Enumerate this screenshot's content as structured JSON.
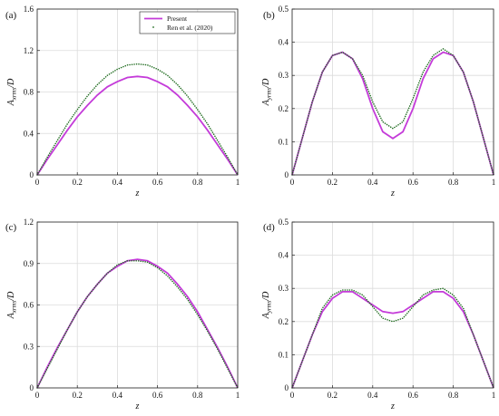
{
  "colors": {
    "present": "#c43bd9",
    "ren": "#1f6b1f",
    "grid": "#dcdcdc",
    "axis": "#222222"
  },
  "chart_data": [
    {
      "panel": "(a)",
      "type": "line",
      "xlabel": "z",
      "ylabel_main": "A",
      "ylabel_sub": "xrms",
      "ylabel_tail": "/D",
      "xlim": [
        0,
        1
      ],
      "ylim": [
        0,
        1.6
      ],
      "xticks": [
        "0",
        "0.2",
        "0.4",
        "0.6",
        "0.8",
        "1"
      ],
      "yticks": [
        "0",
        "0.4",
        "0.8",
        "1.2",
        "1.6"
      ],
      "legend": {
        "position": "top-right",
        "entries": [
          "Present",
          "Ren et al. (2020)"
        ]
      },
      "series": [
        {
          "name": "Present",
          "style": "solid",
          "x": [
            0,
            0.05,
            0.1,
            0.15,
            0.2,
            0.25,
            0.3,
            0.35,
            0.4,
            0.45,
            0.5,
            0.55,
            0.6,
            0.65,
            0.7,
            0.75,
            0.8,
            0.85,
            0.9,
            0.95,
            1
          ],
          "y": [
            0,
            0.15,
            0.29,
            0.43,
            0.56,
            0.67,
            0.77,
            0.85,
            0.9,
            0.94,
            0.95,
            0.94,
            0.9,
            0.85,
            0.77,
            0.67,
            0.56,
            0.43,
            0.29,
            0.15,
            0
          ]
        },
        {
          "name": "Ren et al. (2020)",
          "style": "dotted",
          "x": [
            0,
            0.05,
            0.1,
            0.15,
            0.2,
            0.25,
            0.3,
            0.35,
            0.4,
            0.45,
            0.5,
            0.55,
            0.6,
            0.65,
            0.7,
            0.75,
            0.8,
            0.85,
            0.9,
            0.95,
            1
          ],
          "y": [
            0,
            0.17,
            0.33,
            0.49,
            0.63,
            0.76,
            0.87,
            0.96,
            1.02,
            1.06,
            1.07,
            1.06,
            1.02,
            0.96,
            0.87,
            0.76,
            0.63,
            0.49,
            0.33,
            0.17,
            0
          ]
        }
      ]
    },
    {
      "panel": "(b)",
      "type": "line",
      "xlabel": "z",
      "ylabel_main": "A",
      "ylabel_sub": "yrms",
      "ylabel_tail": "/D",
      "xlim": [
        0,
        1
      ],
      "ylim": [
        0,
        0.5
      ],
      "xticks": [
        "0",
        "0.2",
        "0.4",
        "0.6",
        "0.8",
        "1"
      ],
      "yticks": [
        "0",
        "0.1",
        "0.2",
        "0.3",
        "0.4",
        "0.5"
      ],
      "series": [
        {
          "name": "Present",
          "style": "solid",
          "x": [
            0,
            0.05,
            0.1,
            0.15,
            0.2,
            0.25,
            0.3,
            0.35,
            0.4,
            0.45,
            0.5,
            0.55,
            0.6,
            0.65,
            0.7,
            0.75,
            0.8,
            0.85,
            0.9,
            0.95,
            1
          ],
          "y": [
            0,
            0.11,
            0.22,
            0.31,
            0.36,
            0.37,
            0.35,
            0.29,
            0.2,
            0.13,
            0.11,
            0.13,
            0.2,
            0.29,
            0.35,
            0.37,
            0.36,
            0.31,
            0.22,
            0.11,
            0
          ]
        },
        {
          "name": "Ren et al. (2020)",
          "style": "dotted",
          "x": [
            0,
            0.05,
            0.1,
            0.15,
            0.2,
            0.25,
            0.3,
            0.35,
            0.4,
            0.45,
            0.5,
            0.55,
            0.6,
            0.65,
            0.7,
            0.75,
            0.8,
            0.85,
            0.9,
            0.95,
            1
          ],
          "y": [
            0,
            0.11,
            0.22,
            0.31,
            0.36,
            0.37,
            0.35,
            0.3,
            0.22,
            0.16,
            0.14,
            0.16,
            0.23,
            0.31,
            0.36,
            0.38,
            0.36,
            0.31,
            0.22,
            0.11,
            0
          ]
        }
      ]
    },
    {
      "panel": "(c)",
      "type": "line",
      "xlabel": "z",
      "ylabel_main": "A",
      "ylabel_sub": "xrms",
      "ylabel_tail": "/D",
      "xlim": [
        0,
        1
      ],
      "ylim": [
        0,
        1.2
      ],
      "xticks": [
        "0",
        "0.2",
        "0.4",
        "0.6",
        "0.8",
        "1"
      ],
      "yticks": [
        "0",
        "0.3",
        "0.6",
        "0.9",
        "1.2"
      ],
      "series": [
        {
          "name": "Present",
          "style": "solid",
          "x": [
            0,
            0.05,
            0.1,
            0.15,
            0.2,
            0.25,
            0.3,
            0.35,
            0.4,
            0.45,
            0.5,
            0.55,
            0.6,
            0.65,
            0.7,
            0.75,
            0.8,
            0.85,
            0.9,
            0.95,
            1
          ],
          "y": [
            0,
            0.15,
            0.29,
            0.42,
            0.55,
            0.66,
            0.75,
            0.83,
            0.88,
            0.92,
            0.93,
            0.92,
            0.88,
            0.83,
            0.75,
            0.66,
            0.55,
            0.42,
            0.29,
            0.15,
            0
          ]
        },
        {
          "name": "Ren et al. (2020)",
          "style": "dotted",
          "x": [
            0,
            0.05,
            0.1,
            0.15,
            0.2,
            0.25,
            0.3,
            0.35,
            0.4,
            0.45,
            0.5,
            0.55,
            0.6,
            0.65,
            0.7,
            0.75,
            0.8,
            0.85,
            0.9,
            0.95,
            1
          ],
          "y": [
            0,
            0.14,
            0.28,
            0.42,
            0.55,
            0.66,
            0.75,
            0.83,
            0.89,
            0.92,
            0.92,
            0.91,
            0.87,
            0.81,
            0.73,
            0.64,
            0.53,
            0.41,
            0.28,
            0.14,
            0
          ]
        }
      ]
    },
    {
      "panel": "(d)",
      "type": "line",
      "xlabel": "z",
      "ylabel_main": "A",
      "ylabel_sub": "yrms",
      "ylabel_tail": "/D",
      "xlim": [
        0,
        1
      ],
      "ylim": [
        0,
        0.5
      ],
      "xticks": [
        "0",
        "0.2",
        "0.4",
        "0.6",
        "0.8",
        "1"
      ],
      "yticks": [
        "0",
        "0.1",
        "0.2",
        "0.3",
        "0.4",
        "0.5"
      ],
      "series": [
        {
          "name": "Present",
          "style": "solid",
          "x": [
            0,
            0.05,
            0.1,
            0.15,
            0.2,
            0.25,
            0.3,
            0.35,
            0.4,
            0.45,
            0.5,
            0.55,
            0.6,
            0.65,
            0.7,
            0.75,
            0.8,
            0.85,
            0.9,
            0.95,
            1
          ],
          "y": [
            0,
            0.08,
            0.16,
            0.23,
            0.27,
            0.29,
            0.29,
            0.27,
            0.25,
            0.23,
            0.225,
            0.23,
            0.25,
            0.27,
            0.29,
            0.29,
            0.27,
            0.23,
            0.16,
            0.08,
            0
          ]
        },
        {
          "name": "Ren et al. (2020)",
          "style": "dotted",
          "x": [
            0,
            0.05,
            0.1,
            0.15,
            0.2,
            0.25,
            0.3,
            0.35,
            0.4,
            0.45,
            0.5,
            0.55,
            0.6,
            0.65,
            0.7,
            0.75,
            0.8,
            0.85,
            0.9,
            0.95,
            1
          ],
          "y": [
            0,
            0.08,
            0.16,
            0.24,
            0.28,
            0.295,
            0.295,
            0.28,
            0.245,
            0.21,
            0.2,
            0.21,
            0.245,
            0.28,
            0.295,
            0.3,
            0.28,
            0.24,
            0.16,
            0.08,
            0
          ]
        }
      ]
    }
  ]
}
